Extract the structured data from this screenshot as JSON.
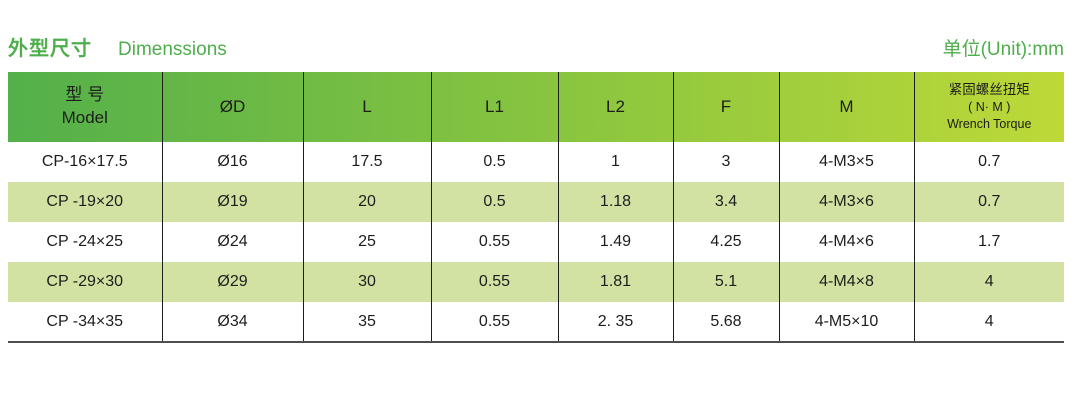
{
  "header": {
    "title_zh": "外型尺寸",
    "title_en": "Dimenssions",
    "unit_label": "单位(Unit):mm"
  },
  "table": {
    "columns": {
      "model": {
        "zh": "型 号",
        "en": "Model"
      },
      "od": "ØD",
      "l": "L",
      "l1": "L1",
      "l2": "L2",
      "f": "F",
      "m": "M",
      "torque": {
        "zh": "紧固螺丝扭矩",
        "paren": "( N· M )",
        "en": "Wrench Torque"
      }
    },
    "rows": [
      [
        "CP-16×17.5",
        "Ø16",
        "17.5",
        "0.5",
        "1",
        "3",
        "4-M3×5",
        "0.7"
      ],
      [
        "CP -19×20",
        "Ø19",
        "20",
        "0.5",
        "1.18",
        "3.4",
        "4-M3×6",
        "0.7"
      ],
      [
        "CP -24×25",
        "Ø24",
        "25",
        "0.55",
        "1.49",
        "4.25",
        "4-M4×6",
        "1.7"
      ],
      [
        "CP -29×30",
        "Ø29",
        "30",
        "0.55",
        "1.81",
        "5.1",
        "4-M4×8",
        "4"
      ],
      [
        "CP -34×35",
        "Ø34",
        "35",
        "0.55",
        "2. 35",
        "5.68",
        "4-M5×10",
        "4"
      ]
    ]
  },
  "colors": {
    "accent": "#4fae4c",
    "header_gradient_left": "#53b04a",
    "header_gradient_right": "#bdd938",
    "stripe": "#d2e2a3",
    "text": "#1d1d1b"
  }
}
